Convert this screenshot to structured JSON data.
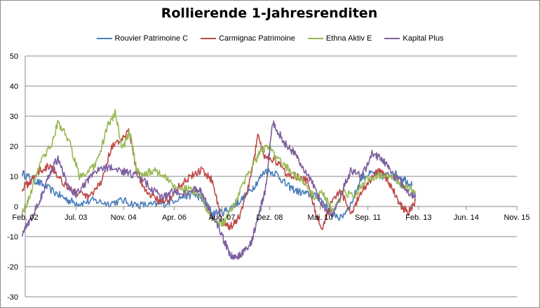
{
  "chart_data": {
    "type": "line",
    "title": "Rollierende 1-Jahresrenditen",
    "xlabel": "",
    "ylabel": "",
    "ylim": [
      -30,
      50
    ],
    "yticks": [
      -30,
      -20,
      -10,
      0,
      10,
      20,
      30,
      40,
      50
    ],
    "xlim": [
      2002.083,
      2015.833
    ],
    "xticks": [
      {
        "label": "Feb. 02",
        "t": 2002.083
      },
      {
        "label": "Jul. 03",
        "t": 2003.5
      },
      {
        "label": "Nov. 04",
        "t": 2004.833
      },
      {
        "label": "Apr. 06",
        "t": 2006.25
      },
      {
        "label": "Aug. 07",
        "t": 2007.583
      },
      {
        "label": "Dez. 08",
        "t": 2008.917
      },
      {
        "label": "Mai. 10",
        "t": 2010.333
      },
      {
        "label": "Sep. 11",
        "t": 2011.667
      },
      {
        "label": "Feb. 13",
        "t": 2013.083
      },
      {
        "label": "Jun. 14",
        "t": 2014.417
      },
      {
        "label": "Nov. 15",
        "t": 2015.833
      }
    ],
    "grid": true,
    "legend_position": "top",
    "series": [
      {
        "name": "Rouvier Patrimoine C",
        "color": "#4a7ebb",
        "t": [
          2002.0,
          2002.3,
          2002.6,
          2003.0,
          2003.3,
          2003.6,
          2004.0,
          2004.4,
          2004.8,
          2005.2,
          2005.6,
          2006.0,
          2006.4,
          2006.8,
          2007.0,
          2007.3,
          2007.6,
          2007.9,
          2008.2,
          2008.5,
          2008.8,
          2009.1,
          2009.4,
          2009.7,
          2010.0,
          2010.3,
          2010.6,
          2010.9,
          2011.2,
          2011.5,
          2011.8,
          2012.1,
          2012.4,
          2012.7,
          2012.9
        ],
        "values": [
          11,
          9,
          7,
          4,
          2,
          1,
          2,
          1,
          2,
          0.5,
          0.5,
          1,
          3,
          4,
          3,
          -2,
          -2,
          0,
          3,
          7,
          12,
          11,
          7,
          5,
          4,
          3,
          -1,
          -4,
          1,
          10,
          11,
          10,
          11,
          9,
          7
        ]
      },
      {
        "name": "Carmignac Patrimoine",
        "color": "#be4b48",
        "t": [
          2002.0,
          2002.2,
          2002.5,
          2002.8,
          2003.0,
          2003.3,
          2003.6,
          2003.9,
          2004.2,
          2004.5,
          2004.8,
          2005.0,
          2005.2,
          2005.4,
          2005.6,
          2005.8,
          2006.1,
          2006.4,
          2006.7,
          2007.0,
          2007.3,
          2007.6,
          2007.8,
          2008.1,
          2008.4,
          2008.6,
          2008.8,
          2009.1,
          2009.4,
          2009.7,
          2010.0,
          2010.2,
          2010.4,
          2010.6,
          2010.9,
          2011.2,
          2011.5,
          2011.8,
          2012.0,
          2012.2,
          2012.4,
          2012.6,
          2012.8,
          2013.0
        ],
        "values": [
          6,
          8,
          12,
          14,
          10,
          6,
          4,
          3,
          8,
          20,
          22,
          25,
          12,
          6,
          4,
          2,
          2,
          7,
          10,
          12,
          9,
          -5,
          -7,
          -3,
          10,
          24,
          16,
          15,
          11,
          10,
          8,
          -2,
          -7,
          0,
          5,
          -2,
          5,
          10,
          12,
          9,
          5,
          0,
          -2,
          2
        ]
      },
      {
        "name": "Ethna Aktiv E",
        "color": "#98b954",
        "t": [
          2002.0,
          2002.2,
          2002.5,
          2002.8,
          2003.0,
          2003.3,
          2003.6,
          2003.9,
          2004.1,
          2004.4,
          2004.6,
          2004.8,
          2005.0,
          2005.2,
          2005.4,
          2005.6,
          2005.9,
          2006.2,
          2006.5,
          2006.8,
          2007.0,
          2007.3,
          2007.6,
          2007.9,
          2008.2,
          2008.5,
          2008.7,
          2008.9,
          2009.1,
          2009.4,
          2009.7,
          2009.9,
          2010.2,
          2010.4,
          2010.7,
          2011.0,
          2011.3,
          2011.6,
          2011.9,
          2012.1,
          2012.4,
          2012.6,
          2012.8,
          2013.0
        ],
        "values": [
          -2,
          3,
          15,
          20,
          28,
          22,
          10,
          12,
          15,
          27,
          31,
          19,
          25,
          12,
          10,
          12,
          11,
          7,
          6,
          5,
          3,
          -4,
          -6,
          0,
          8,
          15,
          19,
          20,
          16,
          13,
          10,
          7,
          3,
          5,
          -2,
          5,
          3,
          9,
          10,
          11,
          10,
          7,
          6,
          5
        ]
      },
      {
        "name": "Kapital Plus",
        "color": "#7d5fa0",
        "t": [
          2002.0,
          2002.2,
          2002.4,
          2002.6,
          2002.8,
          2003.0,
          2003.3,
          2003.5,
          2003.8,
          2004.1,
          2004.4,
          2004.7,
          2005.0,
          2005.3,
          2005.6,
          2005.9,
          2006.2,
          2006.5,
          2006.8,
          2007.0,
          2007.2,
          2007.4,
          2007.6,
          2007.8,
          2008.0,
          2008.2,
          2008.4,
          2008.6,
          2008.8,
          2009.0,
          2009.2,
          2009.4,
          2009.6,
          2009.8,
          2010.1,
          2010.4,
          2010.7,
          2011.0,
          2011.2,
          2011.5,
          2011.8,
          2012.0,
          2012.2,
          2012.4,
          2012.6,
          2012.8,
          2013.0
        ],
        "values": [
          -9,
          -5,
          0,
          5,
          12,
          16,
          6,
          4,
          8,
          12,
          13,
          12,
          11,
          10,
          6,
          3,
          5,
          4,
          6,
          5,
          0,
          -5,
          -10,
          -16,
          -17,
          -15,
          -12,
          -3,
          5,
          28,
          24,
          20,
          18,
          14,
          8,
          0,
          -3,
          7,
          12,
          10,
          18,
          16,
          14,
          10,
          8,
          5,
          3
        ]
      }
    ]
  }
}
